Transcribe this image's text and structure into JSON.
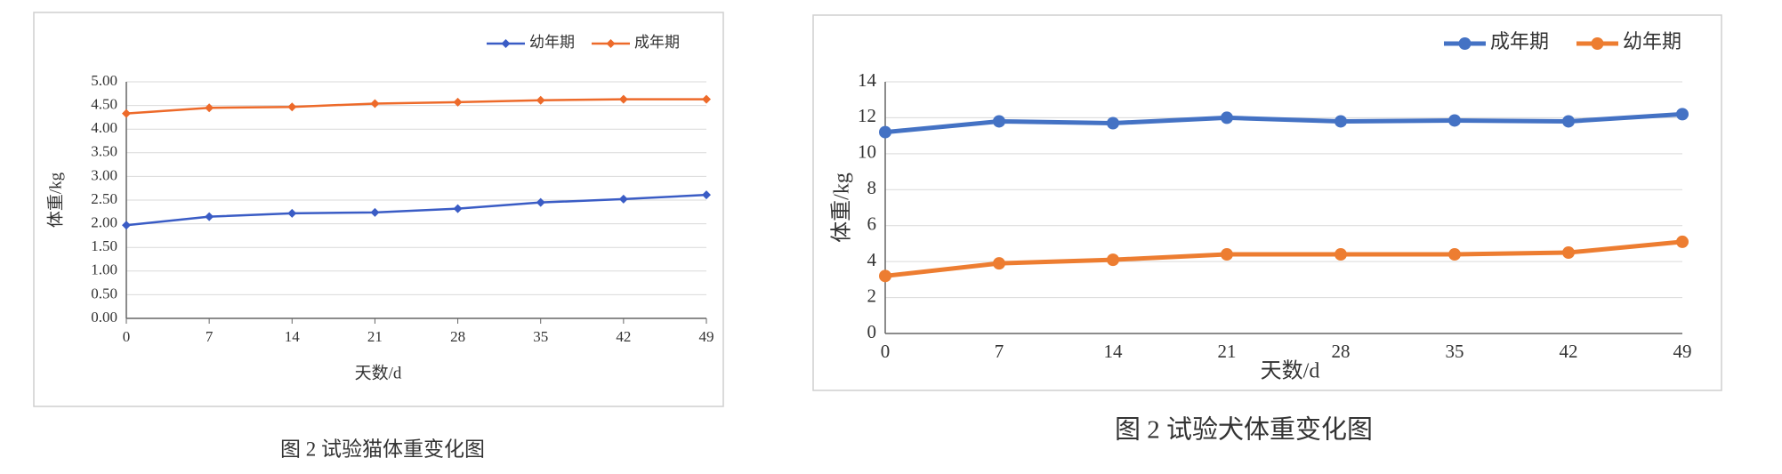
{
  "chart_data": [
    {
      "type": "line",
      "title": "图 2  试验猫体重变化图",
      "x_label": "天数/d",
      "y_label": "体重/kg",
      "x": [
        0,
        7,
        14,
        21,
        28,
        35,
        42,
        49
      ],
      "xlim": [
        0,
        49
      ],
      "xticks": [
        0,
        7,
        14,
        21,
        28,
        35,
        42,
        49
      ],
      "ylim": [
        0,
        5
      ],
      "yticks": [
        {
          "value": 0,
          "label": "0.00"
        },
        {
          "value": 0.5,
          "label": "0.50"
        },
        {
          "value": 1,
          "label": "1.00"
        },
        {
          "value": 1.5,
          "label": "1.50"
        },
        {
          "value": 2,
          "label": "2.00"
        },
        {
          "value": 2.5,
          "label": "2.50"
        },
        {
          "value": 3,
          "label": "3.00"
        },
        {
          "value": 3.5,
          "label": "3.50"
        },
        {
          "value": 4,
          "label": "4.00"
        },
        {
          "value": 4.5,
          "label": "4.50"
        },
        {
          "value": 5,
          "label": "5.00"
        }
      ],
      "grid": true,
      "legend": "top-right",
      "marker": "diamond",
      "series": [
        {
          "name": "幼年期",
          "color": "#3a5cc5",
          "values": [
            1.97,
            2.15,
            2.22,
            2.24,
            2.32,
            2.45,
            2.52,
            2.61
          ]
        },
        {
          "name": "成年期",
          "color": "#ed6a2a",
          "values": [
            4.33,
            4.45,
            4.47,
            4.54,
            4.57,
            4.61,
            4.63,
            4.63
          ]
        }
      ]
    },
    {
      "type": "line",
      "title": "图 2  试验犬体重变化图",
      "x_label": "天数/d",
      "y_label": "体重/kg",
      "x": [
        0,
        7,
        14,
        21,
        28,
        35,
        42,
        49
      ],
      "xlim": [
        0,
        49
      ],
      "xticks": [
        0,
        7,
        14,
        21,
        28,
        35,
        42,
        49
      ],
      "ylim": [
        0,
        14
      ],
      "yticks": [
        0,
        2,
        4,
        6,
        8,
        10,
        12,
        14
      ],
      "grid": true,
      "legend": "top-right",
      "marker": "circle",
      "series": [
        {
          "name": "成年期",
          "color": "#4472c4",
          "values": [
            11.2,
            11.8,
            11.7,
            12.0,
            11.8,
            11.85,
            11.8,
            12.2
          ]
        },
        {
          "name": "幼年期",
          "color": "#ed7d31",
          "values": [
            3.2,
            3.9,
            4.1,
            4.4,
            4.4,
            4.4,
            4.5,
            5.1
          ]
        }
      ]
    }
  ]
}
